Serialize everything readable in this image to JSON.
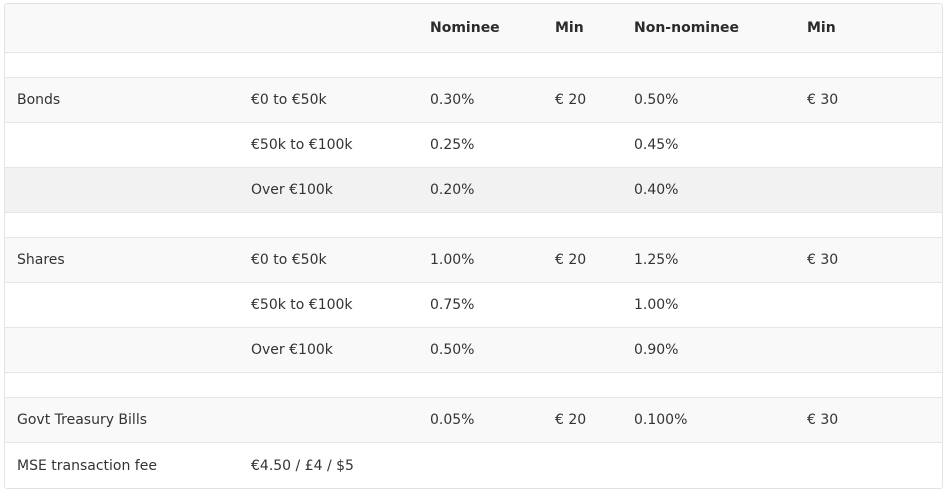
{
  "header": {
    "columns": [
      "",
      "",
      "Nominee",
      "Min",
      "Non-nominee",
      "Min"
    ]
  },
  "rows": [
    {
      "cells": [
        "",
        "",
        "",
        "",
        "",
        ""
      ]
    },
    {
      "cells": [
        "Bonds",
        "€0 to €50k",
        "0.30%",
        "€ 20",
        "0.50%",
        "€ 30"
      ]
    },
    {
      "cells": [
        "",
        "€50k to €100k",
        "0.25%",
        "",
        "0.45%",
        ""
      ]
    },
    {
      "cells": [
        "",
        "Over €100k",
        "0.20%",
        "",
        "0.40%",
        ""
      ]
    },
    {
      "cells": [
        "",
        "",
        "",
        "",
        "",
        ""
      ]
    },
    {
      "cells": [
        "Shares",
        "€0 to €50k",
        "1.00%",
        "€ 20",
        "1.25%",
        "€ 30"
      ]
    },
    {
      "cells": [
        "",
        "€50k to €100k",
        "0.75%",
        "",
        "1.00%",
        ""
      ]
    },
    {
      "cells": [
        "",
        "Over €100k",
        "0.50%",
        "",
        "0.90%",
        ""
      ]
    },
    {
      "cells": [
        "",
        "",
        "",
        "",
        "",
        ""
      ]
    },
    {
      "cells": [
        "Govt Treasury Bills",
        "",
        "0.05%",
        "€ 20",
        "0.100%",
        "€ 30"
      ]
    },
    {
      "cells": [
        "MSE transaction fee",
        "€4.50 / £4 / $5",
        "",
        "",
        "",
        ""
      ]
    }
  ],
  "colors": {
    "stripe": "#f9f9f9",
    "highlight": "#f2f2f2",
    "white": "#ffffff",
    "border": "#e5e5e5",
    "text": "#333333"
  }
}
